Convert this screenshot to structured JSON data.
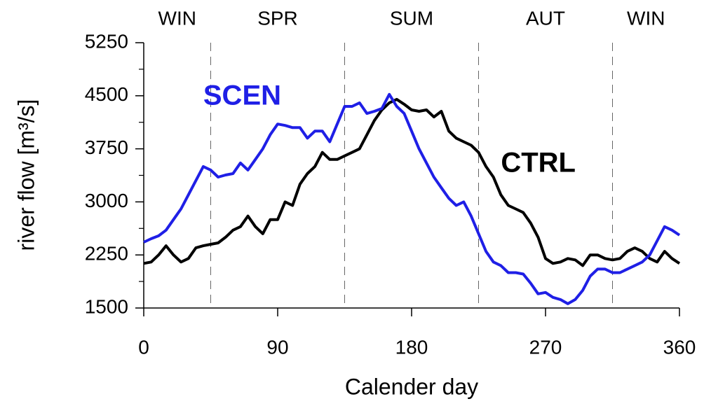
{
  "chart_data": {
    "type": "line",
    "xlabel": "Calender day",
    "ylabel": "river flow [m³/s]",
    "xlim": [
      0,
      360
    ],
    "ylim": [
      1500,
      5250
    ],
    "xticks": [
      0,
      90,
      180,
      270,
      360
    ],
    "yticks": [
      5250,
      4500,
      3750,
      3000,
      2250,
      1500
    ],
    "vlines": [
      45,
      135,
      225,
      315
    ],
    "seasons": [
      "WIN",
      "SPR",
      "SUM",
      "AUT",
      "WIN"
    ],
    "annotations": [
      {
        "text": "SCEN",
        "color": "#1f1fe6",
        "x": 40,
        "y": 4480
      },
      {
        "text": "CTRL",
        "color": "#000000",
        "x": 240,
        "y": 3530
      }
    ],
    "x": [
      0,
      5,
      10,
      15,
      20,
      25,
      30,
      35,
      40,
      45,
      50,
      55,
      60,
      65,
      70,
      75,
      80,
      85,
      90,
      95,
      100,
      105,
      110,
      115,
      120,
      125,
      130,
      135,
      140,
      145,
      150,
      155,
      160,
      165,
      170,
      175,
      180,
      185,
      190,
      195,
      200,
      205,
      210,
      215,
      220,
      225,
      230,
      235,
      240,
      245,
      250,
      255,
      260,
      265,
      270,
      275,
      280,
      285,
      290,
      295,
      300,
      305,
      310,
      315,
      320,
      325,
      330,
      335,
      340,
      345,
      350,
      355,
      360
    ],
    "series": [
      {
        "name": "CTRL",
        "color": "#000000",
        "values": [
          2130,
          2150,
          2250,
          2380,
          2250,
          2150,
          2200,
          2350,
          2380,
          2400,
          2420,
          2500,
          2600,
          2650,
          2800,
          2650,
          2550,
          2750,
          2750,
          3000,
          2950,
          3250,
          3400,
          3500,
          3700,
          3600,
          3600,
          3650,
          3700,
          3750,
          3950,
          4150,
          4300,
          4400,
          4450,
          4380,
          4300,
          4280,
          4300,
          4200,
          4280,
          4000,
          3900,
          3850,
          3800,
          3700,
          3500,
          3350,
          3100,
          2950,
          2900,
          2850,
          2700,
          2500,
          2200,
          2130,
          2150,
          2200,
          2180,
          2100,
          2250,
          2250,
          2200,
          2180,
          2200,
          2300,
          2350,
          2300,
          2200,
          2150,
          2300,
          2200,
          2130
        ]
      },
      {
        "name": "SCEN",
        "color": "#1f1fe6",
        "values": [
          2430,
          2480,
          2520,
          2600,
          2750,
          2900,
          3100,
          3300,
          3500,
          3450,
          3350,
          3380,
          3400,
          3550,
          3450,
          3600,
          3750,
          3950,
          4100,
          4080,
          4050,
          4050,
          3900,
          4000,
          4000,
          3850,
          4100,
          4350,
          4350,
          4400,
          4250,
          4280,
          4320,
          4520,
          4350,
          4250,
          4000,
          3750,
          3550,
          3350,
          3200,
          3050,
          2950,
          3000,
          2800,
          2550,
          2300,
          2150,
          2100,
          2000,
          2000,
          1980,
          1850,
          1700,
          1720,
          1650,
          1620,
          1560,
          1620,
          1750,
          1950,
          2050,
          2050,
          2000,
          2000,
          2050,
          2100,
          2150,
          2250,
          2450,
          2650,
          2600,
          2530
        ]
      }
    ]
  }
}
